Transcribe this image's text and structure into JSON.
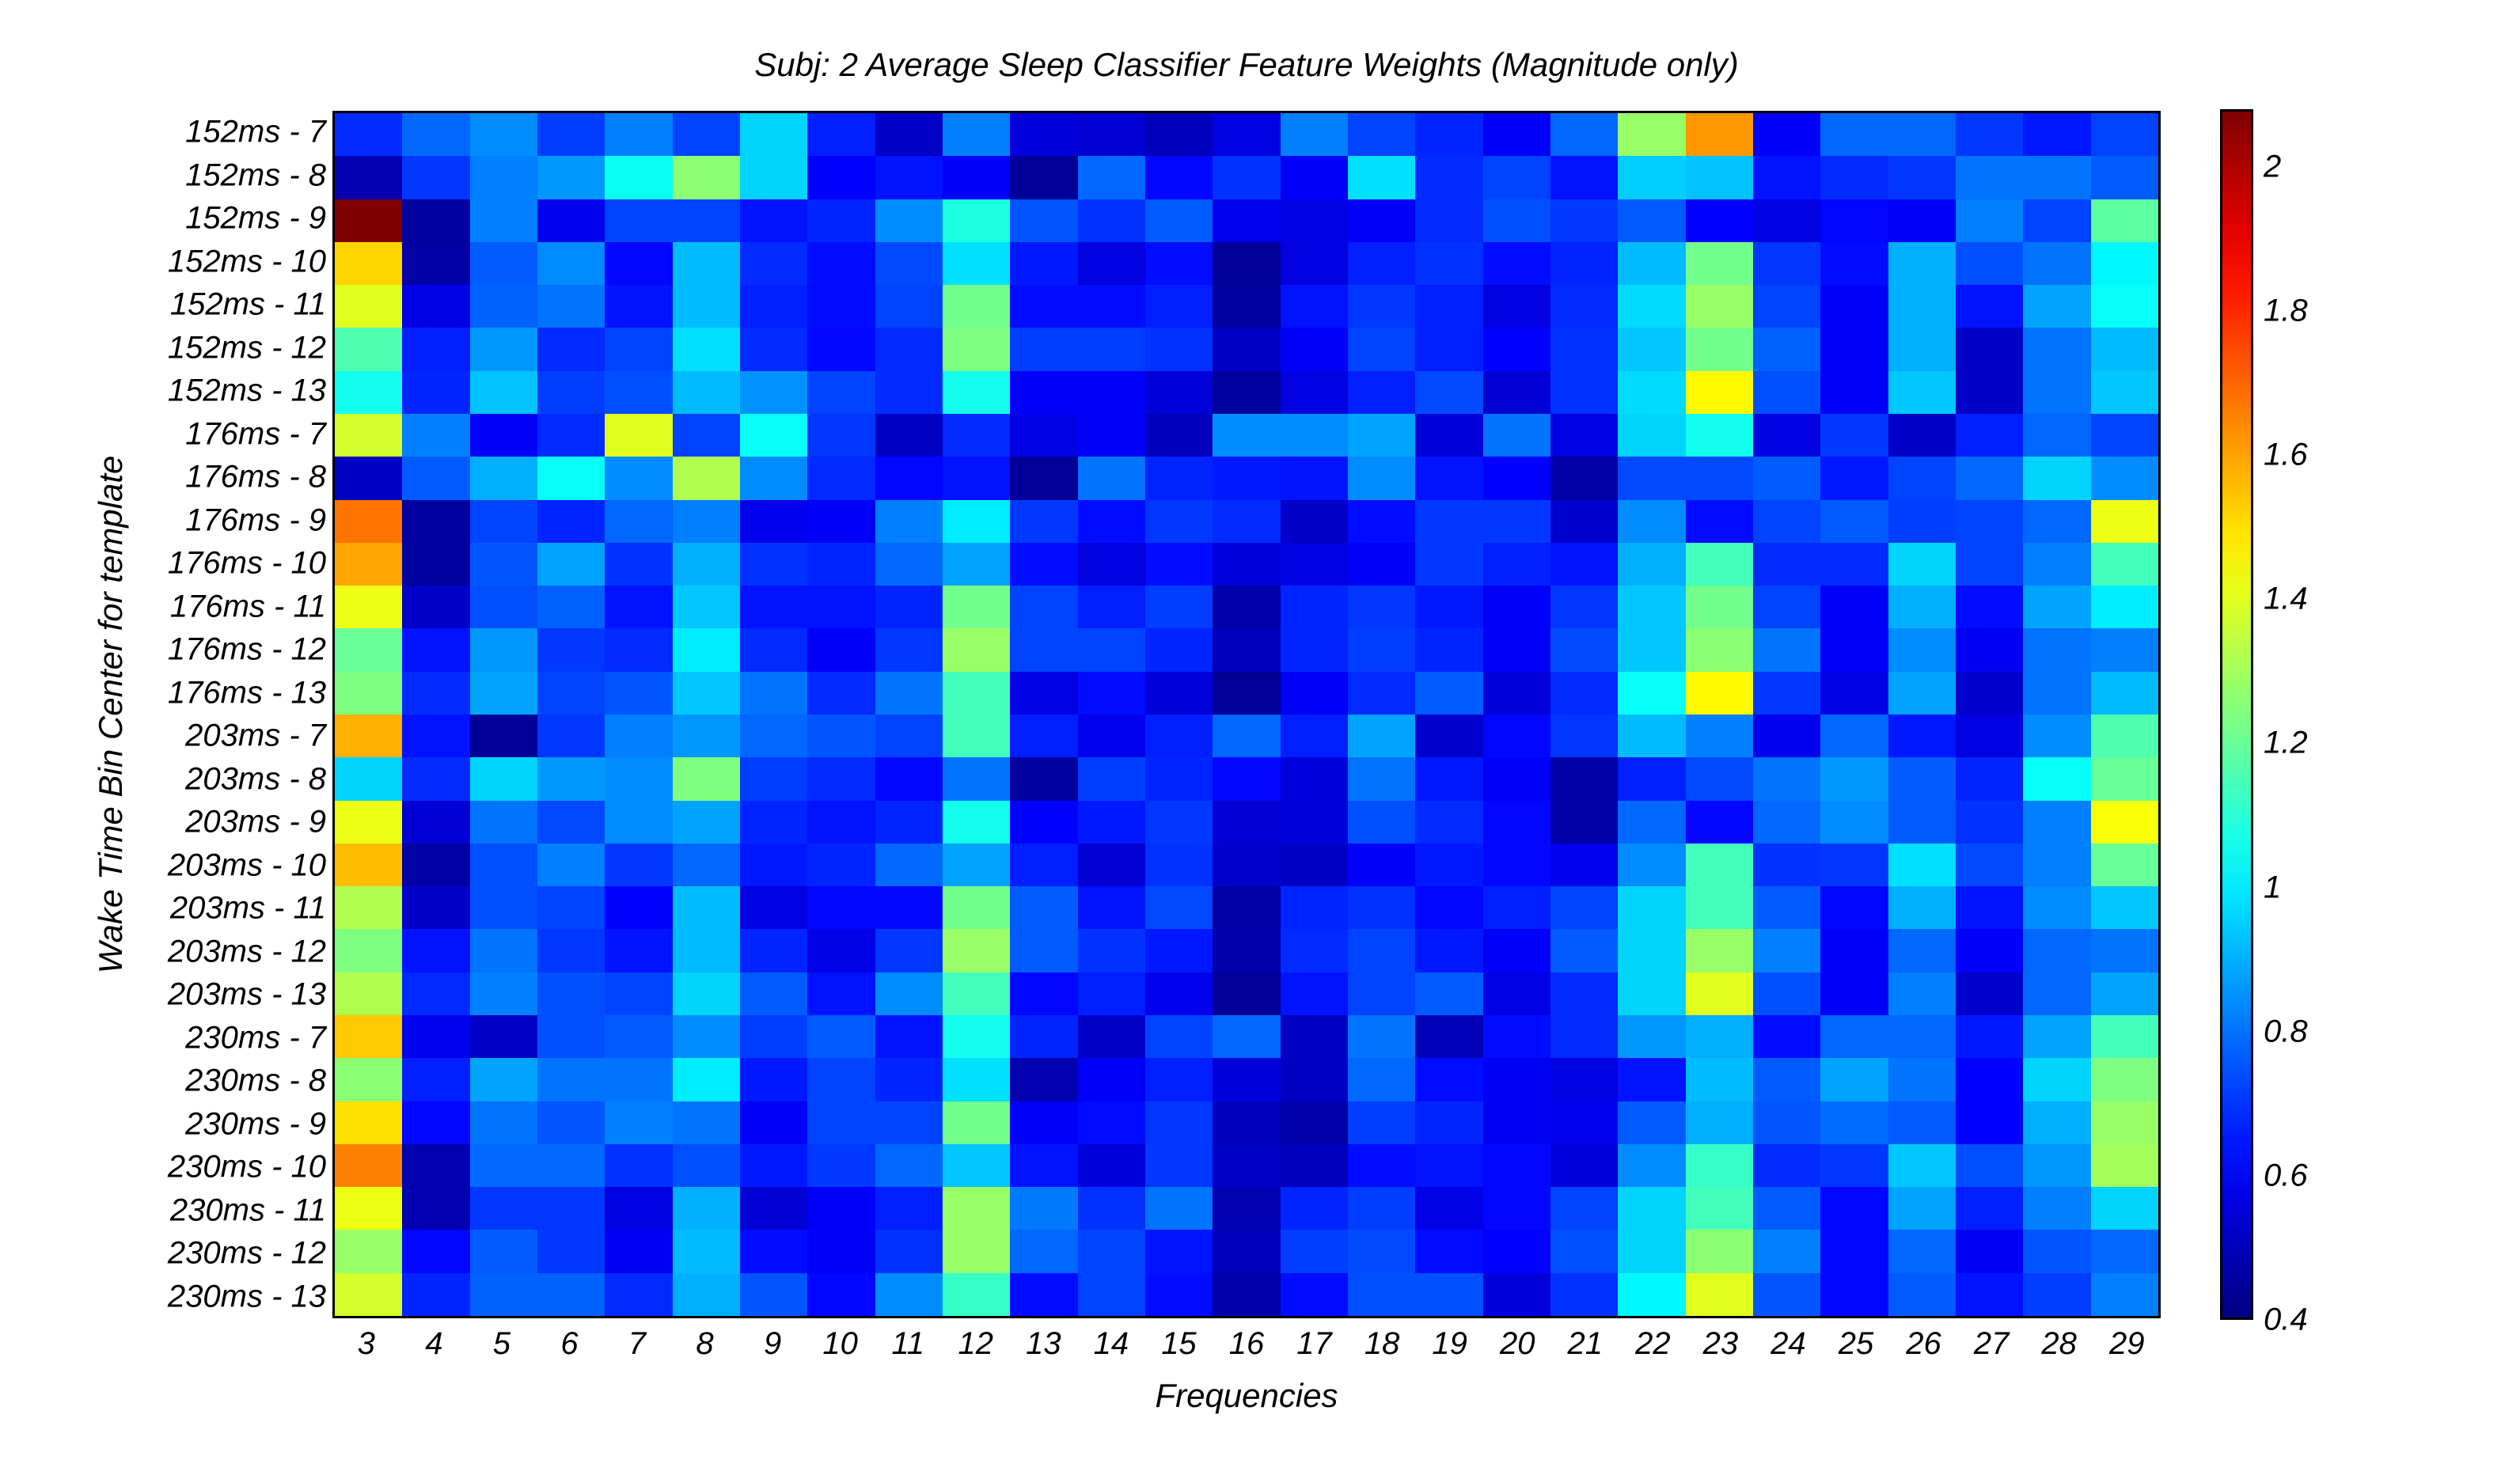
{
  "chart_data": {
    "type": "heatmap",
    "title": "Subj: 2 Average Sleep Classifier Feature Weights (Magnitude only)",
    "xlabel": "Frequencies",
    "ylabel": "Wake Time Bin Center for template",
    "x": [
      3,
      4,
      5,
      6,
      7,
      8,
      9,
      10,
      11,
      12,
      13,
      14,
      15,
      16,
      17,
      18,
      19,
      20,
      21,
      22,
      23,
      24,
      25,
      26,
      27,
      28,
      29
    ],
    "y": [
      "152ms - 7",
      "152ms - 8",
      "152ms - 9",
      "152ms - 10",
      "152ms - 11",
      "152ms - 12",
      "152ms - 13",
      "176ms - 7",
      "176ms - 8",
      "176ms - 9",
      "176ms - 10",
      "176ms - 11",
      "176ms - 12",
      "176ms - 13",
      "203ms - 7",
      "203ms - 8",
      "203ms - 9",
      "203ms - 10",
      "203ms - 11",
      "203ms - 12",
      "203ms - 13",
      "230ms - 7",
      "230ms - 8",
      "230ms - 9",
      "230ms - 10",
      "230ms - 11",
      "230ms - 12",
      "230ms - 13"
    ],
    "colormap": "jet",
    "clim": [
      0.4,
      2.08
    ],
    "colorbar_ticks": [
      "0.4",
      "0.6",
      "0.8",
      "1",
      "1.2",
      "1.4",
      "1.6",
      "1.8",
      "2"
    ],
    "values": [
      [
        0.68,
        0.78,
        0.84,
        0.71,
        0.82,
        0.72,
        0.96,
        0.66,
        0.52,
        0.82,
        0.55,
        0.54,
        0.5,
        0.56,
        0.82,
        0.72,
        0.67,
        0.6,
        0.78,
        1.28,
        1.62,
        0.6,
        0.78,
        0.78,
        0.7,
        0.65,
        0.72
      ],
      [
        0.48,
        0.7,
        0.82,
        0.86,
        1.05,
        1.26,
        0.96,
        0.61,
        0.64,
        0.6,
        0.44,
        0.78,
        0.62,
        0.69,
        0.6,
        0.98,
        0.68,
        0.72,
        0.64,
        0.95,
        0.93,
        0.64,
        0.68,
        0.7,
        0.8,
        0.8,
        0.76
      ],
      [
        2.08,
        0.45,
        0.82,
        0.58,
        0.72,
        0.72,
        0.64,
        0.67,
        0.84,
        1.08,
        0.75,
        0.69,
        0.76,
        0.58,
        0.56,
        0.6,
        0.68,
        0.74,
        0.7,
        0.76,
        0.61,
        0.56,
        0.62,
        0.6,
        0.82,
        0.72,
        1.18
      ],
      [
        1.52,
        0.46,
        0.76,
        0.84,
        0.62,
        0.92,
        0.68,
        0.63,
        0.73,
        0.98,
        0.65,
        0.56,
        0.63,
        0.44,
        0.56,
        0.66,
        0.69,
        0.63,
        0.67,
        0.92,
        1.22,
        0.7,
        0.63,
        0.9,
        0.74,
        0.8,
        1.02
      ],
      [
        1.4,
        0.57,
        0.77,
        0.8,
        0.64,
        0.92,
        0.66,
        0.63,
        0.72,
        1.22,
        0.63,
        0.63,
        0.66,
        0.45,
        0.64,
        0.7,
        0.66,
        0.56,
        0.68,
        0.97,
        1.28,
        0.72,
        0.6,
        0.9,
        0.64,
        0.88,
        1.04
      ],
      [
        1.16,
        0.66,
        0.86,
        0.68,
        0.72,
        0.98,
        0.68,
        0.62,
        0.68,
        1.24,
        0.71,
        0.71,
        0.69,
        0.51,
        0.6,
        0.72,
        0.66,
        0.61,
        0.69,
        0.94,
        1.22,
        0.77,
        0.6,
        0.9,
        0.52,
        0.8,
        0.92
      ],
      [
        1.06,
        0.67,
        0.93,
        0.71,
        0.74,
        0.92,
        0.85,
        0.72,
        0.68,
        1.06,
        0.6,
        0.6,
        0.55,
        0.45,
        0.56,
        0.66,
        0.73,
        0.54,
        0.69,
        0.97,
        1.46,
        0.74,
        0.6,
        0.94,
        0.52,
        0.8,
        0.94
      ],
      [
        1.38,
        0.82,
        0.6,
        0.68,
        1.4,
        0.72,
        1.04,
        0.7,
        0.51,
        0.68,
        0.57,
        0.6,
        0.5,
        0.84,
        0.84,
        0.88,
        0.55,
        0.8,
        0.56,
        0.96,
        1.06,
        0.56,
        0.7,
        0.52,
        0.66,
        0.78,
        0.72
      ],
      [
        0.51,
        0.76,
        0.9,
        1.04,
        0.84,
        1.32,
        0.84,
        0.68,
        0.62,
        0.64,
        0.44,
        0.8,
        0.67,
        0.65,
        0.64,
        0.84,
        0.64,
        0.61,
        0.46,
        0.73,
        0.73,
        0.76,
        0.65,
        0.72,
        0.78,
        0.96,
        0.84
      ],
      [
        1.68,
        0.45,
        0.72,
        0.67,
        0.78,
        0.82,
        0.58,
        0.6,
        0.82,
        1.0,
        0.7,
        0.63,
        0.7,
        0.68,
        0.52,
        0.63,
        0.7,
        0.7,
        0.53,
        0.84,
        0.63,
        0.72,
        0.76,
        0.71,
        0.72,
        0.78,
        1.42
      ],
      [
        1.6,
        0.45,
        0.75,
        0.88,
        0.69,
        0.9,
        0.69,
        0.67,
        0.78,
        0.88,
        0.63,
        0.56,
        0.63,
        0.55,
        0.56,
        0.6,
        0.7,
        0.66,
        0.64,
        0.9,
        1.14,
        0.68,
        0.68,
        0.96,
        0.72,
        0.82,
        1.14
      ],
      [
        1.42,
        0.52,
        0.74,
        0.77,
        0.64,
        0.94,
        0.64,
        0.64,
        0.67,
        1.22,
        0.72,
        0.66,
        0.71,
        0.47,
        0.67,
        0.7,
        0.65,
        0.6,
        0.7,
        0.94,
        1.22,
        0.72,
        0.6,
        0.9,
        0.63,
        0.88,
        1.0
      ],
      [
        1.2,
        0.64,
        0.86,
        0.7,
        0.68,
        1.0,
        0.68,
        0.6,
        0.7,
        1.28,
        0.72,
        0.72,
        0.67,
        0.5,
        0.67,
        0.71,
        0.67,
        0.6,
        0.73,
        0.94,
        1.26,
        0.8,
        0.6,
        0.84,
        0.59,
        0.8,
        0.82
      ],
      [
        1.24,
        0.68,
        0.88,
        0.72,
        0.75,
        0.94,
        0.8,
        0.68,
        0.8,
        1.14,
        0.57,
        0.63,
        0.55,
        0.44,
        0.6,
        0.68,
        0.76,
        0.55,
        0.68,
        1.04,
        1.46,
        0.7,
        0.57,
        0.88,
        0.53,
        0.8,
        0.92
      ],
      [
        1.58,
        0.64,
        0.44,
        0.7,
        0.82,
        0.86,
        0.78,
        0.75,
        0.72,
        1.14,
        0.66,
        0.58,
        0.66,
        0.78,
        0.66,
        0.88,
        0.53,
        0.62,
        0.7,
        0.92,
        0.82,
        0.58,
        0.78,
        0.65,
        0.56,
        0.84,
        1.16
      ],
      [
        0.96,
        0.68,
        0.96,
        0.86,
        0.84,
        1.24,
        0.71,
        0.68,
        0.62,
        0.8,
        0.45,
        0.71,
        0.67,
        0.62,
        0.55,
        0.8,
        0.65,
        0.6,
        0.46,
        0.66,
        0.73,
        0.8,
        0.86,
        0.76,
        0.67,
        1.04,
        1.2
      ],
      [
        1.42,
        0.54,
        0.8,
        0.73,
        0.84,
        0.88,
        0.67,
        0.64,
        0.67,
        1.06,
        0.61,
        0.65,
        0.7,
        0.54,
        0.55,
        0.74,
        0.68,
        0.62,
        0.46,
        0.78,
        0.62,
        0.78,
        0.84,
        0.76,
        0.69,
        0.82,
        1.44
      ],
      [
        1.56,
        0.46,
        0.74,
        0.82,
        0.7,
        0.78,
        0.65,
        0.67,
        0.78,
        0.88,
        0.66,
        0.54,
        0.69,
        0.53,
        0.51,
        0.6,
        0.65,
        0.62,
        0.58,
        0.84,
        1.14,
        0.69,
        0.7,
        0.98,
        0.73,
        0.82,
        1.2
      ],
      [
        1.32,
        0.52,
        0.74,
        0.72,
        0.61,
        0.92,
        0.56,
        0.62,
        0.62,
        1.22,
        0.76,
        0.64,
        0.73,
        0.46,
        0.67,
        0.69,
        0.62,
        0.66,
        0.72,
        0.96,
        1.14,
        0.76,
        0.62,
        0.9,
        0.64,
        0.84,
        0.94
      ],
      [
        1.24,
        0.64,
        0.8,
        0.7,
        0.64,
        0.92,
        0.67,
        0.57,
        0.7,
        1.28,
        0.76,
        0.69,
        0.65,
        0.47,
        0.68,
        0.72,
        0.65,
        0.6,
        0.76,
        0.96,
        1.28,
        0.82,
        0.6,
        0.78,
        0.6,
        0.78,
        0.8
      ],
      [
        1.32,
        0.68,
        0.82,
        0.74,
        0.72,
        0.96,
        0.76,
        0.64,
        0.84,
        1.14,
        0.62,
        0.66,
        0.58,
        0.44,
        0.64,
        0.72,
        0.76,
        0.57,
        0.68,
        0.96,
        1.4,
        0.74,
        0.6,
        0.82,
        0.53,
        0.78,
        0.88
      ],
      [
        1.54,
        0.58,
        0.52,
        0.74,
        0.76,
        0.84,
        0.71,
        0.76,
        0.64,
        1.06,
        0.67,
        0.52,
        0.72,
        0.78,
        0.51,
        0.8,
        0.49,
        0.63,
        0.68,
        0.86,
        0.9,
        0.63,
        0.78,
        0.78,
        0.65,
        0.88,
        1.14
      ],
      [
        1.26,
        0.66,
        0.88,
        0.8,
        0.8,
        1.0,
        0.65,
        0.72,
        0.67,
        0.98,
        0.48,
        0.6,
        0.66,
        0.55,
        0.51,
        0.78,
        0.63,
        0.59,
        0.56,
        0.64,
        0.92,
        0.76,
        0.88,
        0.8,
        0.61,
        0.96,
        1.24
      ],
      [
        1.5,
        0.62,
        0.8,
        0.75,
        0.82,
        0.8,
        0.6,
        0.72,
        0.72,
        1.22,
        0.6,
        0.63,
        0.7,
        0.5,
        0.47,
        0.71,
        0.67,
        0.59,
        0.58,
        0.76,
        0.9,
        0.75,
        0.79,
        0.76,
        0.61,
        0.9,
        1.28
      ],
      [
        1.66,
        0.48,
        0.78,
        0.78,
        0.69,
        0.74,
        0.65,
        0.7,
        0.78,
        0.94,
        0.64,
        0.55,
        0.7,
        0.52,
        0.5,
        0.63,
        0.64,
        0.62,
        0.55,
        0.84,
        1.12,
        0.68,
        0.7,
        0.94,
        0.74,
        0.86,
        1.3
      ],
      [
        1.42,
        0.48,
        0.7,
        0.7,
        0.56,
        0.9,
        0.54,
        0.6,
        0.66,
        1.28,
        0.81,
        0.69,
        0.8,
        0.48,
        0.67,
        0.71,
        0.57,
        0.62,
        0.72,
        0.96,
        1.14,
        0.76,
        0.62,
        0.88,
        0.66,
        0.82,
        0.96
      ],
      [
        1.28,
        0.62,
        0.76,
        0.7,
        0.59,
        0.92,
        0.63,
        0.6,
        0.69,
        1.28,
        0.78,
        0.72,
        0.64,
        0.5,
        0.71,
        0.73,
        0.63,
        0.61,
        0.74,
        0.96,
        1.26,
        0.82,
        0.62,
        0.78,
        0.59,
        0.75,
        0.78
      ],
      [
        1.38,
        0.67,
        0.77,
        0.77,
        0.68,
        0.9,
        0.75,
        0.62,
        0.84,
        1.12,
        0.63,
        0.72,
        0.63,
        0.47,
        0.63,
        0.74,
        0.74,
        0.55,
        0.69,
        1.02,
        1.4,
        0.75,
        0.62,
        0.76,
        0.64,
        0.71,
        0.82
      ]
    ]
  }
}
